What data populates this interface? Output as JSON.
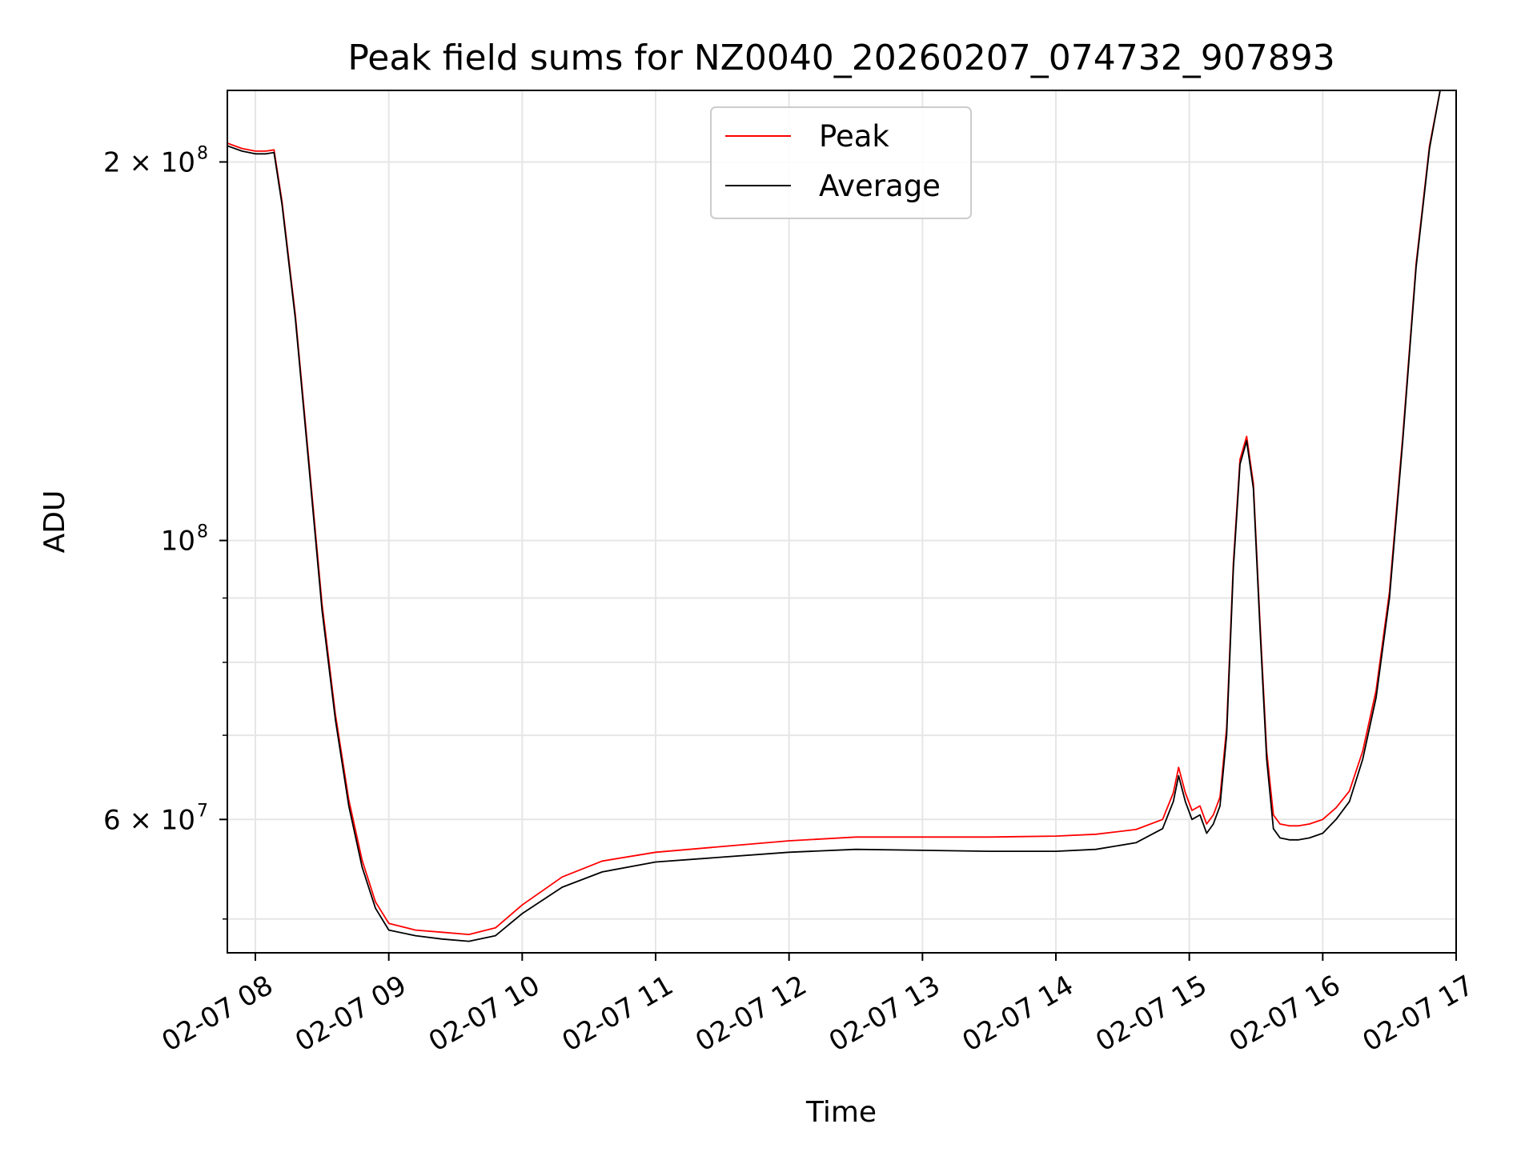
{
  "chart_data": {
    "type": "line",
    "title": "Peak field sums for NZ0040_20260207_074732_907893",
    "xlabel": "Time",
    "ylabel": "ADU",
    "yscale": "log",
    "xlim": [
      7.79,
      17.0
    ],
    "ylim": [
      47000000,
      228000000
    ],
    "x_ticks": [
      {
        "value": 8,
        "label": "02-07 08"
      },
      {
        "value": 9,
        "label": "02-07 09"
      },
      {
        "value": 10,
        "label": "02-07 10"
      },
      {
        "value": 11,
        "label": "02-07 11"
      },
      {
        "value": 12,
        "label": "02-07 12"
      },
      {
        "value": 13,
        "label": "02-07 13"
      },
      {
        "value": 14,
        "label": "02-07 14"
      },
      {
        "value": 15,
        "label": "02-07 15"
      },
      {
        "value": 16,
        "label": "02-07 16"
      },
      {
        "value": 17,
        "label": "02-07 17"
      }
    ],
    "y_major_ticks": [
      {
        "value": 200000000,
        "base": "2 × 10",
        "exp": "8"
      },
      {
        "value": 100000000,
        "base": "10",
        "exp": "8"
      },
      {
        "value": 60000000,
        "base": "6 × 10",
        "exp": "7"
      }
    ],
    "y_minor_ticks": [
      50000000,
      70000000,
      80000000,
      90000000
    ],
    "grid": true,
    "legend": {
      "position": "upper-center",
      "entries": [
        {
          "label": "Peak",
          "color": "#ff0000"
        },
        {
          "label": "Average",
          "color": "#000000"
        }
      ]
    },
    "series": [
      {
        "name": "Average",
        "color": "#000000",
        "x": [
          7.79,
          7.9,
          8.0,
          8.08,
          8.14,
          8.2,
          8.3,
          8.4,
          8.5,
          8.6,
          8.7,
          8.8,
          8.9,
          9.0,
          9.2,
          9.4,
          9.6,
          9.8,
          10.0,
          10.3,
          10.6,
          11.0,
          11.5,
          12.0,
          12.5,
          13.0,
          13.5,
          14.0,
          14.3,
          14.6,
          14.8,
          14.88,
          14.92,
          14.97,
          15.02,
          15.08,
          15.13,
          15.18,
          15.23,
          15.28,
          15.33,
          15.38,
          15.43,
          15.48,
          15.53,
          15.58,
          15.63,
          15.68,
          15.75,
          15.82,
          15.9,
          16.0,
          16.1,
          16.2,
          16.3,
          16.4,
          16.5,
          16.6,
          16.7,
          16.8,
          16.88
        ],
        "y": [
          206000000,
          204000000,
          203000000,
          203000000,
          203500000,
          185000000,
          150000000,
          115000000,
          88000000,
          72000000,
          61500000,
          55000000,
          51000000,
          49000000,
          48500000,
          48200000,
          48000000,
          48500000,
          50500000,
          53000000,
          54500000,
          55500000,
          56000000,
          56500000,
          56800000,
          56700000,
          56600000,
          56600000,
          56800000,
          57500000,
          59000000,
          62000000,
          65000000,
          62000000,
          60000000,
          60500000,
          58500000,
          59500000,
          61500000,
          70000000,
          95000000,
          115000000,
          120000000,
          110000000,
          85000000,
          67000000,
          59000000,
          58000000,
          57800000,
          57800000,
          58000000,
          58500000,
          60000000,
          62000000,
          67000000,
          75000000,
          90000000,
          120000000,
          165000000,
          205000000,
          228000000
        ]
      },
      {
        "name": "Peak",
        "color": "#ff0000",
        "x": [
          7.79,
          7.9,
          8.0,
          8.08,
          8.14,
          8.2,
          8.3,
          8.4,
          8.5,
          8.6,
          8.7,
          8.8,
          8.9,
          9.0,
          9.2,
          9.4,
          9.6,
          9.8,
          10.0,
          10.3,
          10.6,
          11.0,
          11.5,
          12.0,
          12.5,
          13.0,
          13.5,
          14.0,
          14.3,
          14.6,
          14.8,
          14.88,
          14.92,
          14.97,
          15.02,
          15.08,
          15.13,
          15.18,
          15.23,
          15.28,
          15.33,
          15.38,
          15.43,
          15.48,
          15.53,
          15.58,
          15.63,
          15.68,
          15.75,
          15.82,
          15.9,
          16.0,
          16.1,
          16.2,
          16.3,
          16.4,
          16.5,
          16.6,
          16.7,
          16.8,
          16.88
        ],
        "y": [
          207000000,
          205000000,
          204000000,
          204000000,
          204500000,
          186000000,
          151000000,
          116000000,
          89000000,
          72700000,
          62200000,
          55700000,
          51600000,
          49600000,
          49000000,
          48800000,
          48600000,
          49200000,
          51300000,
          54000000,
          55600000,
          56500000,
          57100000,
          57700000,
          58100000,
          58100000,
          58100000,
          58200000,
          58400000,
          58900000,
          60000000,
          63000000,
          66000000,
          63000000,
          61000000,
          61500000,
          59500000,
          60500000,
          62500000,
          71000000,
          96000000,
          116000000,
          121000000,
          111000000,
          86000000,
          68000000,
          60500000,
          59500000,
          59300000,
          59300000,
          59500000,
          60000000,
          61300000,
          63200000,
          68000000,
          76000000,
          91000000,
          121000000,
          166000000,
          206000000,
          228000000
        ]
      }
    ]
  }
}
